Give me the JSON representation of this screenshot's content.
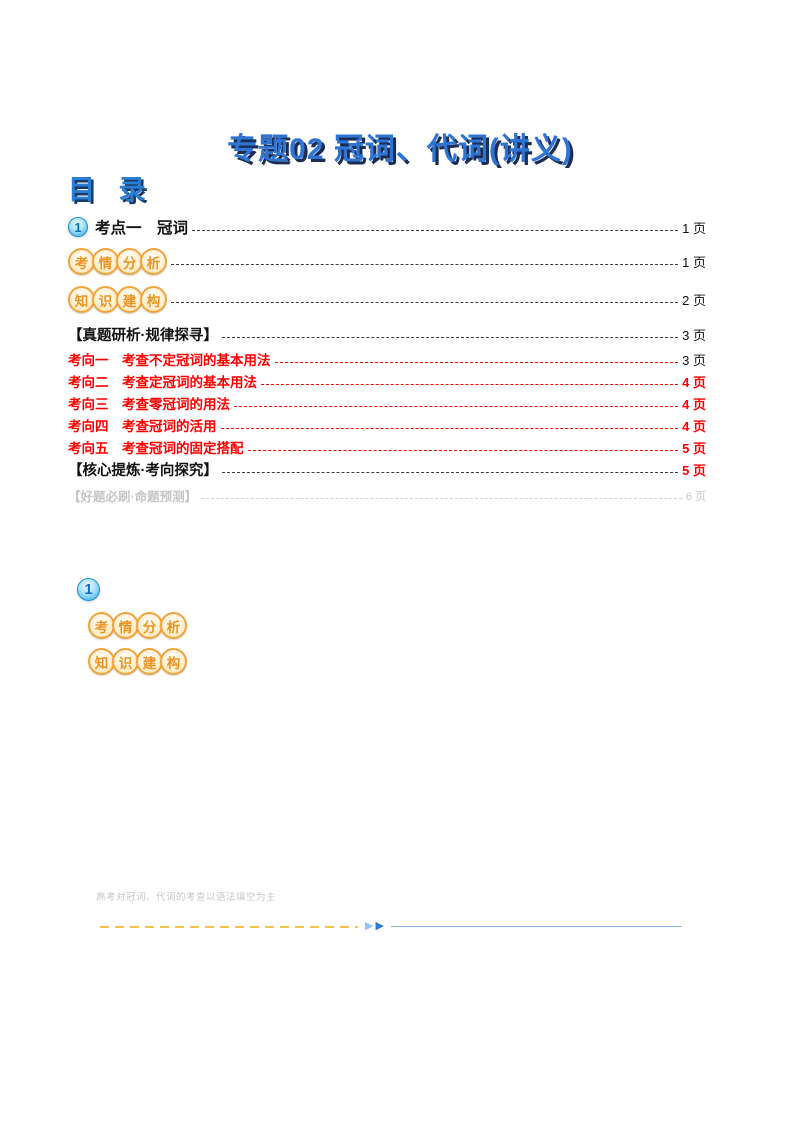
{
  "page": {
    "title": "专题02  冠词、代词(讲义)",
    "toc_heading": "目 录"
  },
  "colors": {
    "title_blue": "#2E74D5",
    "badge_orange": "#F2A43C",
    "highlight_red": "#FF0000",
    "divider_gold": "#F3C24B",
    "divider_blue": "#8AB6E8"
  },
  "toc": {
    "section_number": "1",
    "rows": [
      {
        "label": "考点一　冠词",
        "page": "1 页"
      },
      {
        "chars": [
          "考",
          "情",
          "分",
          "析"
        ],
        "page": "1 页"
      },
      {
        "chars": [
          "知",
          "识",
          "建",
          "构"
        ],
        "page": "2 页"
      },
      {
        "label": "【真题研析·规律探寻】",
        "page": "3 页"
      },
      {
        "label": "考向一　考查不定冠词的基本用法",
        "page": "3 页"
      },
      {
        "label": "考向二　考查定冠词的基本用法",
        "page": "4 页"
      },
      {
        "label": "考向三　考查零冠词的用法",
        "page": "4 页"
      },
      {
        "label": "考向四　考查冠词的活用",
        "page": "4 页"
      },
      {
        "label": "考向五　考查冠词的固定搭配",
        "page": "5 页"
      },
      {
        "label": "【核心提炼·考向探究】",
        "page": "5 页"
      },
      {
        "label": "【好题必刷·命题预测】",
        "page": "6 页"
      }
    ]
  },
  "section2": {
    "number": "1",
    "badge1": [
      "考",
      "情",
      "分",
      "析"
    ],
    "badge2": [
      "知",
      "识",
      "建",
      "构"
    ]
  },
  "footer": {
    "note": "高考对冠词、代词的考查以语法填空为主",
    "arrow_glyph": "▶"
  }
}
